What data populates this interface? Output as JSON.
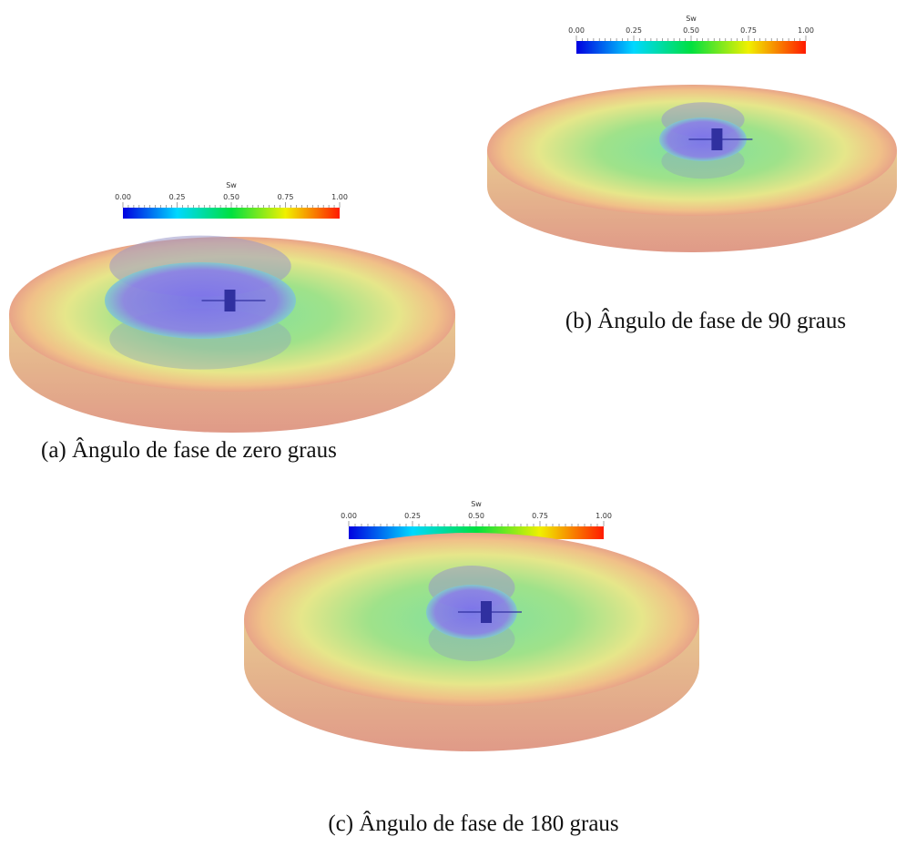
{
  "panels": [
    {
      "colorbar": {
        "title": "Sw",
        "ticks": [
          "0.00",
          "0.25",
          "0.50",
          "0.75",
          "1.00"
        ]
      },
      "caption": "(a) Ângulo de fase de zero graus"
    },
    {
      "colorbar": {
        "title": "Sw",
        "ticks": [
          "0.00",
          "0.25",
          "0.50",
          "0.75",
          "1.00"
        ]
      },
      "caption": "(b) Ângulo de fase de 90 graus"
    },
    {
      "colorbar": {
        "title": "Sw",
        "ticks": [
          "0.00",
          "0.25",
          "0.50",
          "0.75",
          "1.00"
        ]
      },
      "caption": "(c) Ângulo de fase de 180 graus"
    }
  ]
}
